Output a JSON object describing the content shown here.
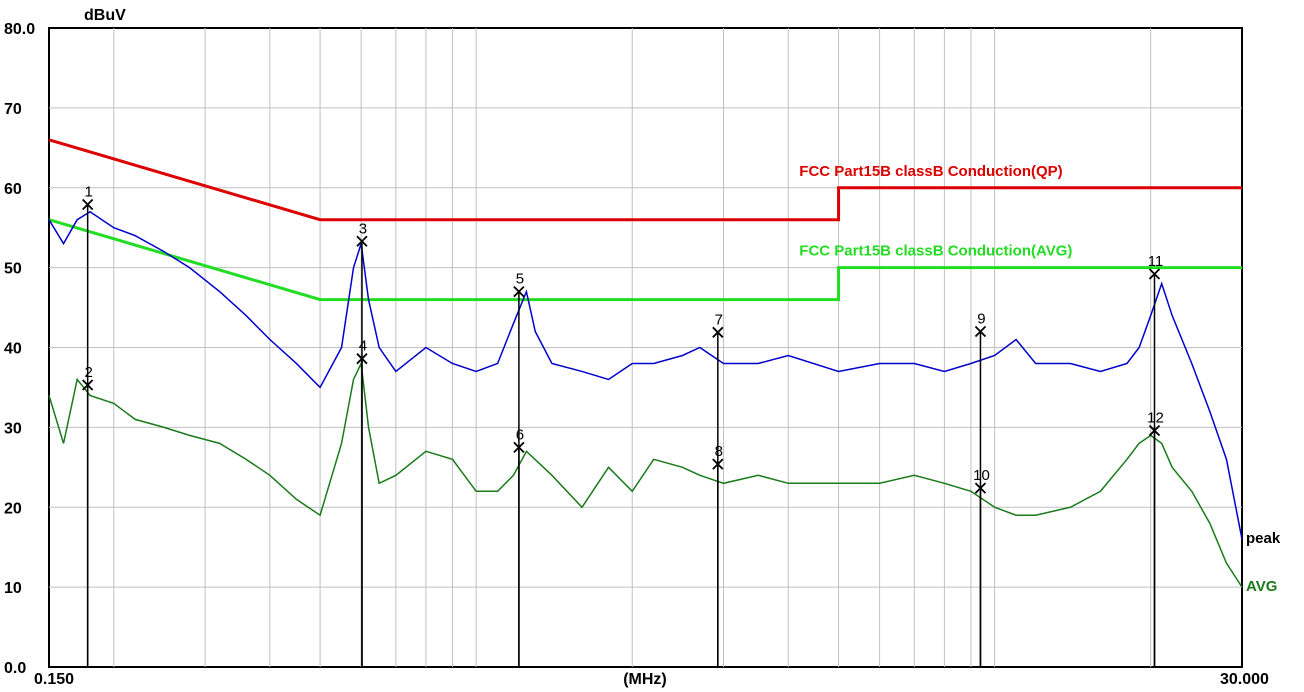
{
  "chart_data": {
    "type": "line",
    "title": "",
    "xlabel": "(MHz)",
    "ylabel": "dBuV",
    "x_scale": "log",
    "xlim": [
      0.15,
      30.0
    ],
    "ylim": [
      0,
      80
    ],
    "x_tick_labels": [
      "0.150",
      "30.000"
    ],
    "y_ticks": [
      0,
      10,
      20,
      30,
      40,
      50,
      60,
      70,
      80
    ],
    "y_tick_labels": [
      "0.0",
      "10",
      "20",
      "30",
      "40",
      "50",
      "60",
      "70",
      "80.0"
    ],
    "grid": true,
    "colors": {
      "qp_limit": "#dd0000",
      "avg_limit": "#22dd22",
      "peak": "#0000cc",
      "avg": "#1a7a1a",
      "grid": "#c0c0c0"
    },
    "limits": [
      {
        "name": "FCC  Part15B classB Conduction(QP)",
        "color": "#dd0000",
        "x": [
          0.15,
          0.5,
          5.0,
          5.0,
          30.0
        ],
        "y": [
          66,
          56,
          56,
          60,
          60
        ]
      },
      {
        "name": "FCC  Part15B classB Conduction(AVG)",
        "color": "#22dd22",
        "x": [
          0.15,
          0.5,
          5.0,
          5.0,
          30.0
        ],
        "y": [
          56,
          46,
          46,
          50,
          50
        ]
      }
    ],
    "series": [
      {
        "name": "peak",
        "color": "#0000cc",
        "x": [
          0.15,
          0.16,
          0.17,
          0.18,
          0.2,
          0.22,
          0.25,
          0.28,
          0.32,
          0.36,
          0.4,
          0.45,
          0.5,
          0.55,
          0.58,
          0.6,
          0.62,
          0.65,
          0.7,
          0.8,
          0.9,
          1.0,
          1.1,
          1.18,
          1.25,
          1.3,
          1.4,
          1.6,
          1.8,
          2.0,
          2.2,
          2.5,
          2.7,
          3.0,
          3.5,
          4.0,
          5.0,
          6.0,
          7.0,
          8.0,
          9.0,
          10.0,
          11.0,
          12.0,
          14.0,
          16.0,
          18.0,
          19.0,
          20.0,
          21.0,
          22.0,
          24.0,
          26.0,
          28.0,
          30.0
        ],
        "y": [
          56,
          53,
          56,
          57,
          55,
          54,
          52,
          50,
          47,
          44,
          41,
          38,
          35,
          40,
          50,
          53,
          46,
          40,
          37,
          40,
          38,
          37,
          38,
          43,
          47,
          42,
          38,
          37,
          36,
          38,
          38,
          39,
          40,
          38,
          38,
          39,
          37,
          38,
          38,
          37,
          38,
          39,
          41,
          38,
          38,
          37,
          38,
          40,
          44,
          48,
          44,
          38,
          32,
          26,
          16
        ]
      },
      {
        "name": "AVG",
        "color": "#1a7a1a",
        "x": [
          0.15,
          0.16,
          0.17,
          0.18,
          0.2,
          0.22,
          0.25,
          0.28,
          0.32,
          0.36,
          0.4,
          0.45,
          0.5,
          0.55,
          0.58,
          0.6,
          0.62,
          0.65,
          0.7,
          0.8,
          0.9,
          1.0,
          1.1,
          1.18,
          1.25,
          1.4,
          1.6,
          1.8,
          2.0,
          2.2,
          2.5,
          2.7,
          3.0,
          3.5,
          4.0,
          5.0,
          6.0,
          7.0,
          8.0,
          9.0,
          10.0,
          11.0,
          12.0,
          14.0,
          16.0,
          18.0,
          19.0,
          20.0,
          21.0,
          22.0,
          24.0,
          26.0,
          28.0,
          30.0
        ],
        "y": [
          34,
          28,
          36,
          34,
          33,
          31,
          30,
          29,
          28,
          26,
          24,
          21,
          19,
          28,
          36,
          38,
          30,
          23,
          24,
          27,
          26,
          22,
          22,
          24,
          27,
          24,
          20,
          25,
          22,
          26,
          25,
          24,
          23,
          24,
          23,
          23,
          23,
          24,
          23,
          22,
          20,
          19,
          19,
          20,
          22,
          26,
          28,
          29,
          28,
          25,
          22,
          18,
          13,
          10
        ]
      }
    ],
    "markers": [
      {
        "label": "1",
        "x": 0.1781,
        "y": 57.9
      },
      {
        "label": "2",
        "x": 0.1781,
        "y": 35.3
      },
      {
        "label": "3",
        "x": 0.6022,
        "y": 53.3
      },
      {
        "label": "4",
        "x": 0.6022,
        "y": 38.6
      },
      {
        "label": "5",
        "x": 1.209,
        "y": 47.0
      },
      {
        "label": "6",
        "x": 1.209,
        "y": 27.5
      },
      {
        "label": "7",
        "x": 2.925,
        "y": 41.9
      },
      {
        "label": "8",
        "x": 2.925,
        "y": 25.4
      },
      {
        "label": "9",
        "x": 9.39,
        "y": 42.0
      },
      {
        "label": "10",
        "x": 9.39,
        "y": 22.4
      },
      {
        "label": "11",
        "x": 20.34,
        "y": 49.2
      },
      {
        "label": "12",
        "x": 20.34,
        "y": 29.6
      }
    ],
    "trace_labels": [
      "peak",
      "AVG"
    ]
  }
}
